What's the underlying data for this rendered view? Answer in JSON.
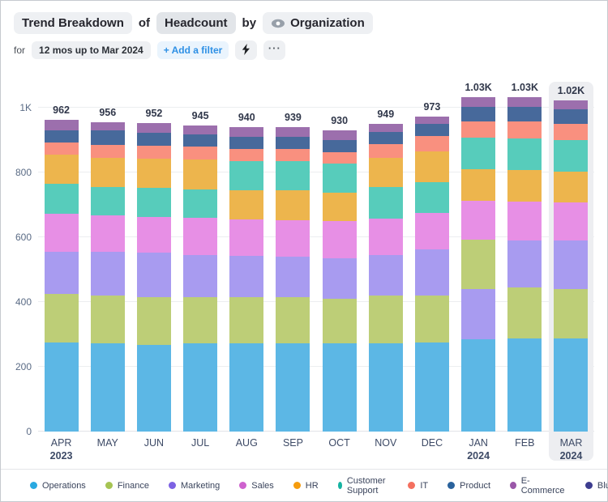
{
  "header": {
    "visualization": "Trend Breakdown",
    "of_label": "of",
    "metric": "Headcount",
    "by_label": "by",
    "dimension": "Organization",
    "for_label": "for",
    "time_range": "12 mos up to Mar 2024",
    "add_filter_label": "+ Add a filter",
    "more_label": "···"
  },
  "legend": {
    "items": [
      {
        "name": "Operations",
        "color": "#29a9e1"
      },
      {
        "name": "Finance",
        "color": "#a6c453"
      },
      {
        "name": "Marketing",
        "color": "#7d62e3"
      },
      {
        "name": "Sales",
        "color": "#ce62ce"
      },
      {
        "name": "HR",
        "color": "#f59c0e"
      },
      {
        "name": "Customer Support",
        "color": "#16b3a2"
      },
      {
        "name": "IT",
        "color": "#f4705f"
      },
      {
        "name": "Product",
        "color": "#2a629c"
      },
      {
        "name": "E-Commerce",
        "color": "#9a57a8"
      },
      {
        "name": "BlueSphere",
        "color": "#3d3d8f"
      }
    ]
  },
  "chart_data": {
    "type": "bar",
    "subtype": "stacked",
    "ylim": [
      0,
      1080
    ],
    "yticks": [
      {
        "value": 0,
        "label": "0"
      },
      {
        "value": 200,
        "label": "200"
      },
      {
        "value": 400,
        "label": "400"
      },
      {
        "value": 600,
        "label": "600"
      },
      {
        "value": 800,
        "label": "800"
      },
      {
        "value": 1000,
        "label": "1K"
      }
    ],
    "bar_colors": {
      "Operations": "#5cb7e5",
      "Finance": "#bdce77",
      "Marketing": "#a89bf0",
      "Sales": "#e78fe5",
      "HR": "#edb54d",
      "Customer Support": "#57ccbb",
      "IT": "#f9907f",
      "Product": "#47699b",
      "E-Commerce": "#9c6fad",
      "BlueSphere": "#3d3d8f"
    },
    "months": [
      {
        "label": "APR",
        "sublabel": "2023",
        "total": 962,
        "total_label": "962",
        "highlighted": false,
        "segments": [
          {
            "name": "Operations",
            "value": 275
          },
          {
            "name": "Finance",
            "value": 150
          },
          {
            "name": "Marketing",
            "value": 129
          },
          {
            "name": "Sales",
            "value": 118
          },
          {
            "name": "Customer Support",
            "value": 92
          },
          {
            "name": "HR",
            "value": 92
          },
          {
            "name": "IT",
            "value": 36
          },
          {
            "name": "Product",
            "value": 37
          },
          {
            "name": "E-Commerce",
            "value": 33
          }
        ]
      },
      {
        "label": "MAY",
        "sublabel": "",
        "total": 956,
        "total_label": "956",
        "highlighted": false,
        "segments": [
          {
            "name": "Operations",
            "value": 273
          },
          {
            "name": "Finance",
            "value": 146
          },
          {
            "name": "Marketing",
            "value": 136
          },
          {
            "name": "Sales",
            "value": 112
          },
          {
            "name": "Customer Support",
            "value": 88
          },
          {
            "name": "HR",
            "value": 91
          },
          {
            "name": "IT",
            "value": 40
          },
          {
            "name": "Product",
            "value": 43
          },
          {
            "name": "E-Commerce",
            "value": 27
          }
        ]
      },
      {
        "label": "JUN",
        "sublabel": "",
        "total": 952,
        "total_label": "952",
        "highlighted": false,
        "segments": [
          {
            "name": "Operations",
            "value": 268
          },
          {
            "name": "Finance",
            "value": 146
          },
          {
            "name": "Marketing",
            "value": 138
          },
          {
            "name": "Sales",
            "value": 111
          },
          {
            "name": "Customer Support",
            "value": 89
          },
          {
            "name": "HR",
            "value": 90
          },
          {
            "name": "IT",
            "value": 41
          },
          {
            "name": "Product",
            "value": 39
          },
          {
            "name": "E-Commerce",
            "value": 30
          }
        ]
      },
      {
        "label": "JUL",
        "sublabel": "",
        "total": 945,
        "total_label": "945",
        "highlighted": false,
        "segments": [
          {
            "name": "Operations",
            "value": 273
          },
          {
            "name": "Finance",
            "value": 142
          },
          {
            "name": "Marketing",
            "value": 129
          },
          {
            "name": "Sales",
            "value": 115
          },
          {
            "name": "Customer Support",
            "value": 89
          },
          {
            "name": "HR",
            "value": 92
          },
          {
            "name": "IT",
            "value": 40
          },
          {
            "name": "Product",
            "value": 37
          },
          {
            "name": "E-Commerce",
            "value": 28
          }
        ]
      },
      {
        "label": "AUG",
        "sublabel": "",
        "total": 940,
        "total_label": "940",
        "highlighted": false,
        "segments": [
          {
            "name": "Operations",
            "value": 273
          },
          {
            "name": "Finance",
            "value": 142
          },
          {
            "name": "Marketing",
            "value": 127
          },
          {
            "name": "Sales",
            "value": 114
          },
          {
            "name": "HR",
            "value": 88
          },
          {
            "name": "Customer Support",
            "value": 92
          },
          {
            "name": "IT",
            "value": 37
          },
          {
            "name": "Product",
            "value": 38
          },
          {
            "name": "E-Commerce",
            "value": 29
          }
        ]
      },
      {
        "label": "SEP",
        "sublabel": "",
        "total": 939,
        "total_label": "939",
        "highlighted": false,
        "segments": [
          {
            "name": "Operations",
            "value": 272
          },
          {
            "name": "Finance",
            "value": 142
          },
          {
            "name": "Marketing",
            "value": 125
          },
          {
            "name": "Sales",
            "value": 113
          },
          {
            "name": "HR",
            "value": 92
          },
          {
            "name": "Customer Support",
            "value": 91
          },
          {
            "name": "IT",
            "value": 38
          },
          {
            "name": "Product",
            "value": 36
          },
          {
            "name": "E-Commerce",
            "value": 30
          }
        ]
      },
      {
        "label": "OCT",
        "sublabel": "",
        "total": 930,
        "total_label": "930",
        "highlighted": false,
        "segments": [
          {
            "name": "Operations",
            "value": 272
          },
          {
            "name": "Finance",
            "value": 139
          },
          {
            "name": "Marketing",
            "value": 125
          },
          {
            "name": "Sales",
            "value": 114
          },
          {
            "name": "HR",
            "value": 88
          },
          {
            "name": "Customer Support",
            "value": 90
          },
          {
            "name": "IT",
            "value": 35
          },
          {
            "name": "Product",
            "value": 38
          },
          {
            "name": "E-Commerce",
            "value": 29
          }
        ]
      },
      {
        "label": "NOV",
        "sublabel": "",
        "total": 949,
        "total_label": "949",
        "highlighted": false,
        "segments": [
          {
            "name": "Operations",
            "value": 272
          },
          {
            "name": "Finance",
            "value": 147
          },
          {
            "name": "Marketing",
            "value": 127
          },
          {
            "name": "Sales",
            "value": 112
          },
          {
            "name": "Customer Support",
            "value": 96
          },
          {
            "name": "HR",
            "value": 92
          },
          {
            "name": "IT",
            "value": 42
          },
          {
            "name": "Product",
            "value": 37
          },
          {
            "name": "E-Commerce",
            "value": 24
          }
        ]
      },
      {
        "label": "DEC",
        "sublabel": "",
        "total": 973,
        "total_label": "973",
        "highlighted": false,
        "segments": [
          {
            "name": "Operations",
            "value": 275
          },
          {
            "name": "Finance",
            "value": 144
          },
          {
            "name": "Marketing",
            "value": 143
          },
          {
            "name": "Sales",
            "value": 113
          },
          {
            "name": "Customer Support",
            "value": 96
          },
          {
            "name": "HR",
            "value": 93
          },
          {
            "name": "IT",
            "value": 48
          },
          {
            "name": "Product",
            "value": 38
          },
          {
            "name": "E-Commerce",
            "value": 23
          }
        ]
      },
      {
        "label": "JAN",
        "sublabel": "2024",
        "total": 1033,
        "total_label": "1.03K",
        "highlighted": false,
        "segments": [
          {
            "name": "Operations",
            "value": 286
          },
          {
            "name": "Marketing",
            "value": 154
          },
          {
            "name": "Finance",
            "value": 152
          },
          {
            "name": "Sales",
            "value": 121
          },
          {
            "name": "HR",
            "value": 97
          },
          {
            "name": "Customer Support",
            "value": 97
          },
          {
            "name": "IT",
            "value": 50
          },
          {
            "name": "Product",
            "value": 45
          },
          {
            "name": "E-Commerce",
            "value": 31
          }
        ]
      },
      {
        "label": "FEB",
        "sublabel": "",
        "total": 1033,
        "total_label": "1.03K",
        "highlighted": false,
        "segments": [
          {
            "name": "Operations",
            "value": 287
          },
          {
            "name": "Finance",
            "value": 157
          },
          {
            "name": "Marketing",
            "value": 146
          },
          {
            "name": "Sales",
            "value": 121
          },
          {
            "name": "HR",
            "value": 97
          },
          {
            "name": "Customer Support",
            "value": 96
          },
          {
            "name": "IT",
            "value": 53
          },
          {
            "name": "Product",
            "value": 45
          },
          {
            "name": "E-Commerce",
            "value": 31
          }
        ]
      },
      {
        "label": "MAR",
        "sublabel": "2024",
        "total": 1023,
        "total_label": "1.02K",
        "highlighted": true,
        "segments": [
          {
            "name": "Operations",
            "value": 287
          },
          {
            "name": "Finance",
            "value": 152
          },
          {
            "name": "Marketing",
            "value": 150
          },
          {
            "name": "Sales",
            "value": 118
          },
          {
            "name": "HR",
            "value": 96
          },
          {
            "name": "Customer Support",
            "value": 96
          },
          {
            "name": "IT",
            "value": 50
          },
          {
            "name": "Product",
            "value": 45
          },
          {
            "name": "E-Commerce",
            "value": 29
          }
        ]
      }
    ]
  }
}
